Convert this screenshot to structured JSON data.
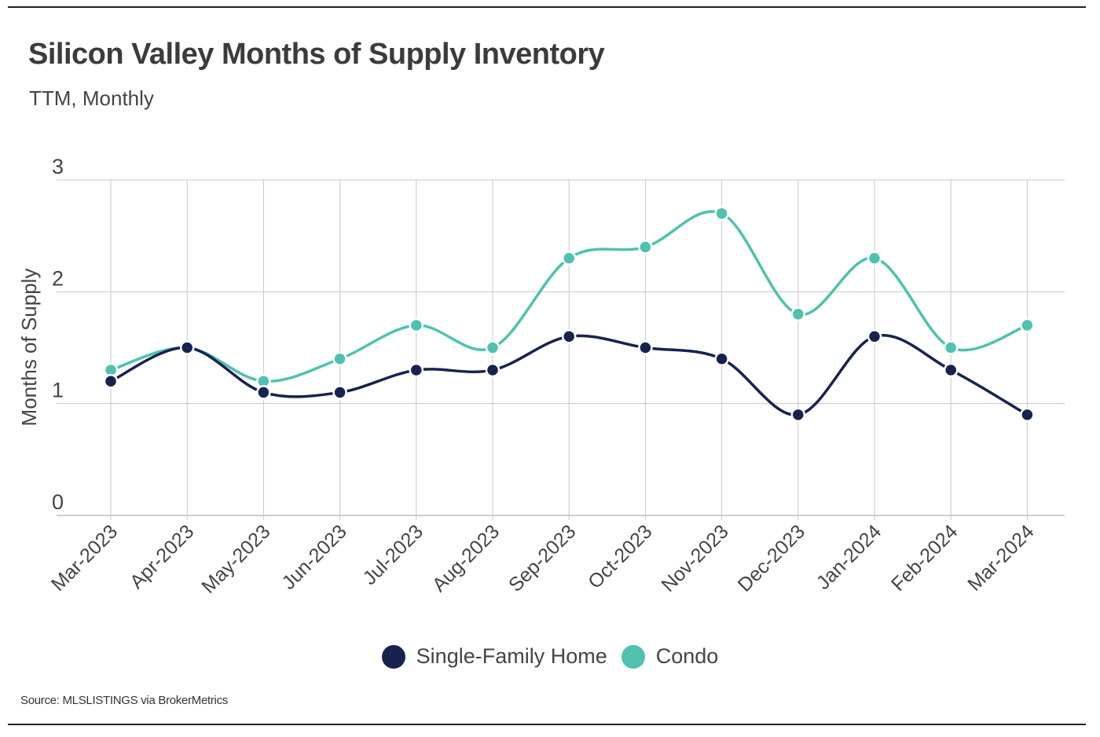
{
  "title": "Silicon Valley Months of Supply Inventory",
  "subtitle": "TTM, Monthly",
  "source": "Source:  MLSLISTINGS via BrokerMetrics",
  "colors": {
    "sfh": "#17224f",
    "condo": "#4ec2ae",
    "grid": "#c8c8c8",
    "text": "#444444"
  },
  "chart_data": {
    "type": "line",
    "title": "Silicon Valley Months of Supply Inventory",
    "subtitle": "TTM, Monthly",
    "xlabel": "",
    "ylabel": "Months of Supply",
    "ylim": [
      0,
      3
    ],
    "yticks": [
      0,
      1,
      2,
      3
    ],
    "grid": true,
    "legend_position": "bottom-center",
    "categories": [
      "Mar-2023",
      "Apr-2023",
      "May-2023",
      "Jun-2023",
      "Jul-2023",
      "Aug-2023",
      "Sep-2023",
      "Oct-2023",
      "Nov-2023",
      "Dec-2023",
      "Jan-2024",
      "Feb-2024",
      "Mar-2024"
    ],
    "series": [
      {
        "name": "Single-Family Home",
        "color": "#17224f",
        "values": [
          1.2,
          1.5,
          1.1,
          1.1,
          1.3,
          1.3,
          1.6,
          1.5,
          1.4,
          0.9,
          1.6,
          1.3,
          0.9
        ]
      },
      {
        "name": "Condo",
        "color": "#4ec2ae",
        "values": [
          1.3,
          1.5,
          1.2,
          1.4,
          1.7,
          1.5,
          2.3,
          2.4,
          2.7,
          1.8,
          2.3,
          1.5,
          1.7
        ]
      }
    ]
  }
}
